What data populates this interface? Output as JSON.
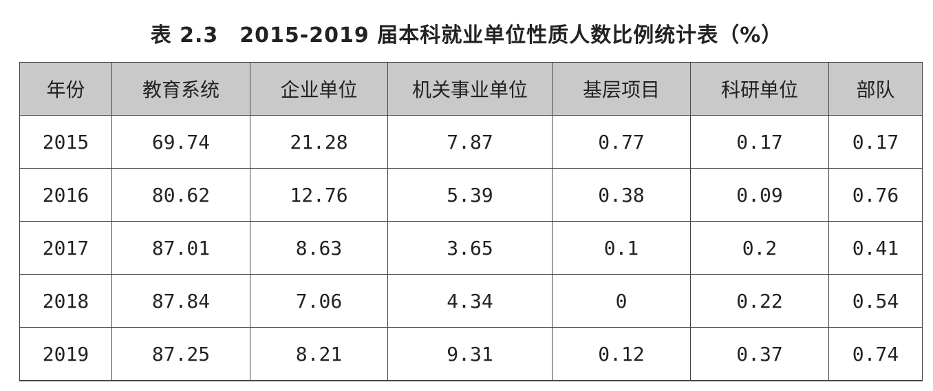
{
  "header": {
    "title": "表 2.3　2015-2019 届本科就业单位性质人数比例统计表（%）"
  },
  "table": {
    "columns": [
      "年份",
      "教育系统",
      "企业单位",
      "机关事业单位",
      "基层项目",
      "科研单位",
      "部队"
    ],
    "rows": [
      [
        "2015",
        "69.74",
        "21.28",
        "7.87",
        "0.77",
        "0.17",
        "0.17"
      ],
      [
        "2016",
        "80.62",
        "12.76",
        "5.39",
        "0.38",
        "0.09",
        "0.76"
      ],
      [
        "2017",
        "87.01",
        "8.63",
        "3.65",
        "0.1",
        "0.2",
        "0.41"
      ],
      [
        "2018",
        "87.84",
        "7.06",
        "4.34",
        "0",
        "0.22",
        "0.54"
      ],
      [
        "2019",
        "87.25",
        "8.21",
        "9.31",
        "0.12",
        "0.37",
        "0.74"
      ]
    ]
  }
}
